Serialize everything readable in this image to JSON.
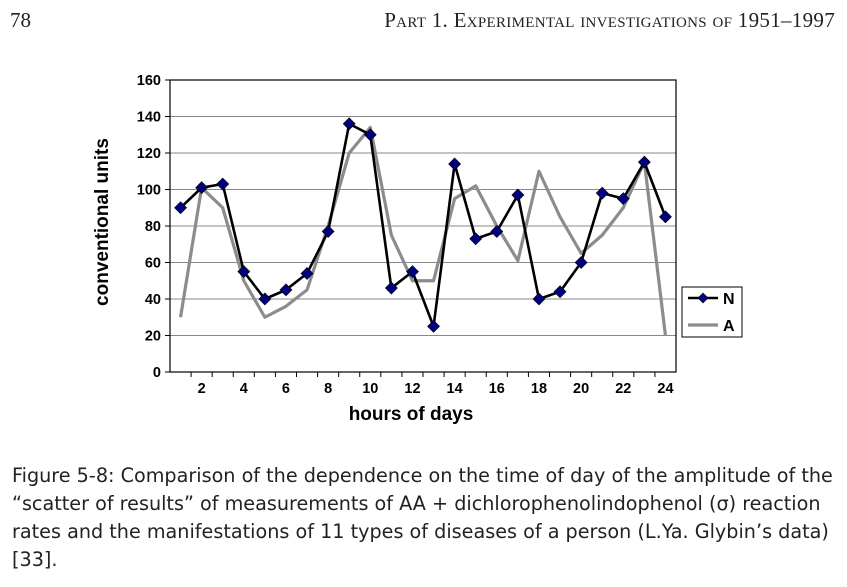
{
  "header": {
    "page_number": "78",
    "running_head": "Part 1.   Experimental investigations of 1951–1997"
  },
  "chart_data": {
    "type": "line",
    "x": [
      1,
      2,
      3,
      4,
      5,
      6,
      7,
      8,
      9,
      10,
      11,
      12,
      13,
      14,
      15,
      16,
      17,
      18,
      19,
      20,
      21,
      22,
      23,
      24
    ],
    "x_ticks": [
      2,
      4,
      6,
      8,
      10,
      12,
      14,
      16,
      18,
      20,
      22,
      24
    ],
    "y_ticks": [
      0,
      20,
      40,
      60,
      80,
      100,
      120,
      140,
      160
    ],
    "xlim": [
      0.5,
      24.5
    ],
    "ylim": [
      0,
      160
    ],
    "xlabel": "hours of days",
    "ylabel": "conventional units",
    "grid": "horizontal",
    "legend_position": "right",
    "series": [
      {
        "name": "N",
        "color": "#000000",
        "marker": "diamond",
        "marker_color": "#00007a",
        "values": [
          90,
          101,
          103,
          55,
          40,
          45,
          54,
          77,
          136,
          130,
          46,
          55,
          25,
          114,
          73,
          77,
          97,
          40,
          44,
          60,
          98,
          95,
          115,
          85
        ]
      },
      {
        "name": "A",
        "color": "#8c8c8c",
        "marker": "none",
        "values": [
          30,
          101,
          90,
          50,
          30,
          36,
          45,
          80,
          120,
          134,
          75,
          50,
          50,
          95,
          102,
          80,
          61,
          110,
          85,
          65,
          75,
          90,
          115,
          20
        ]
      }
    ]
  },
  "caption": "Figure 5-8: Comparison of the dependence on the time of day of the amplitude of the “scatter of results” of measurements of AA + dichlorophenolindophenol (σ) reaction rates and the manifestations of 11 types of diseases of a person (L.Ya. Glybin’s data) [33]."
}
